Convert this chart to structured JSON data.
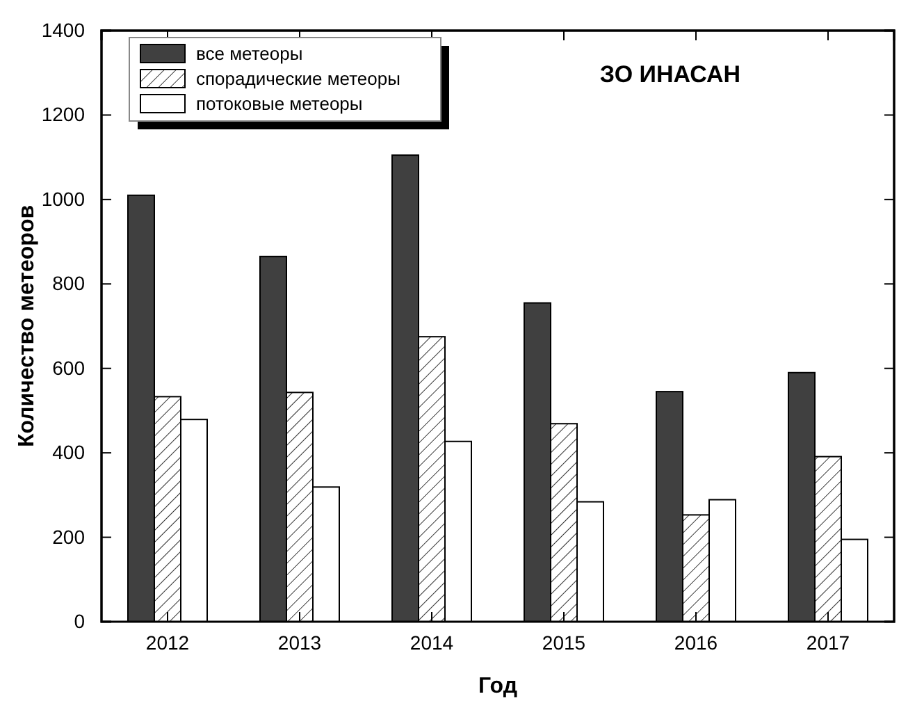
{
  "chart_data": {
    "type": "bar",
    "title": "ЗО ИНАСАН",
    "xlabel": "Год",
    "ylabel": "Количество метеоров",
    "categories": [
      "2012",
      "2013",
      "2014",
      "2015",
      "2016",
      "2017"
    ],
    "series": [
      {
        "name": "все метеоры",
        "color": "#404040",
        "values": [
          1010,
          865,
          1105,
          755,
          545,
          590
        ]
      },
      {
        "name": "спорадические метеоры",
        "color": "#000000",
        "values": [
          533,
          543,
          675,
          469,
          253,
          391
        ]
      },
      {
        "name": "потоковые метеоры",
        "color": "#ffffff",
        "values": [
          479,
          319,
          427,
          284,
          289,
          195
        ]
      }
    ],
    "ylim": [
      0,
      1400
    ],
    "yticks": [
      0,
      200,
      400,
      600,
      800,
      1000,
      1200,
      1400
    ],
    "grid": false,
    "legend": "top left"
  }
}
